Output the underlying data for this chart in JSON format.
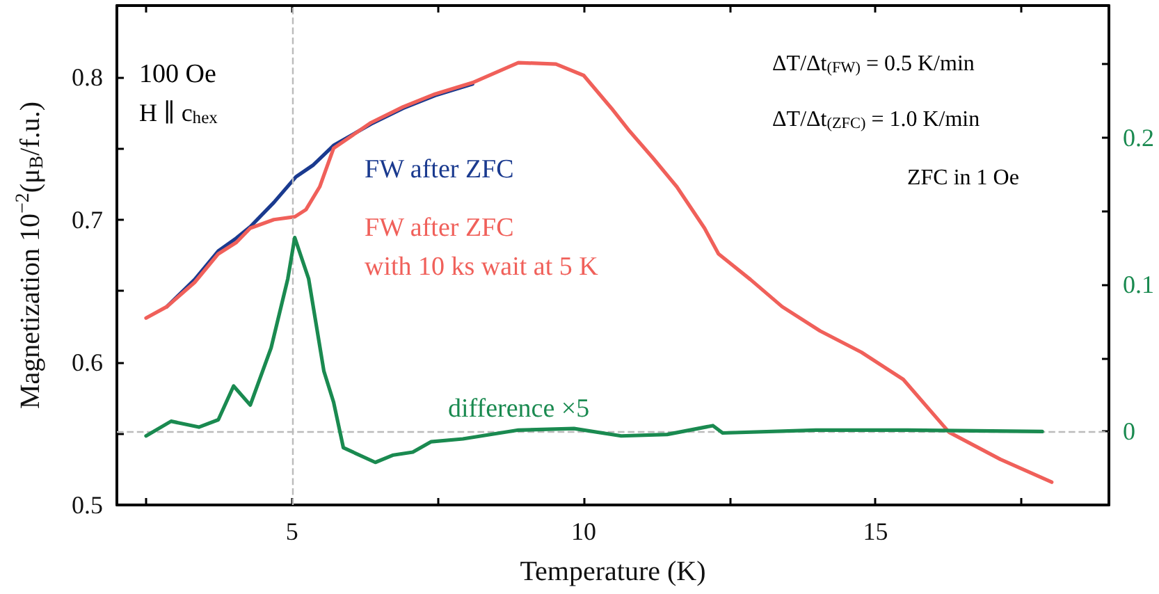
{
  "chart_data": {
    "type": "line",
    "xlabel": "Temperature (K)",
    "ylabel": "Magnetization 10$^{−2}$(μ$_{B}$/f.u.)",
    "xlim": [
      2,
      19
    ],
    "xticks": [
      {
        "value": 2.5,
        "label": null
      },
      5,
      {
        "value": 7.5,
        "label": null
      },
      10,
      {
        "value": 12.5,
        "label": null
      },
      15,
      {
        "value": 17.5,
        "label": null
      }
    ],
    "ylim": [
      0.5,
      0.85
    ],
    "yticks": [
      0.5,
      {
        "value": 0.55,
        "label": null
      },
      0.6,
      {
        "value": 0.65,
        "label": null
      },
      0.7,
      {
        "value": 0.75,
        "label": null
      },
      0.8
    ],
    "y2lim": [
      -0.05,
      0.29
    ],
    "y2ticks": [
      {
        "value": -0.05,
        "label": null
      },
      0,
      {
        "value": 0.05,
        "label": null
      },
      0.1,
      {
        "value": 0.15,
        "label": null
      },
      0.2,
      {
        "value": 0.25,
        "label": null
      }
    ],
    "grid": false,
    "legend": false,
    "marker": "none",
    "line_style": "solid",
    "series": [
      {
        "name": "FW after ZFC",
        "color": "#1a3a8f",
        "x": [
          2.857,
          3.333,
          3.738,
          4.048,
          4.286,
          4.69,
          5.07,
          5.357,
          5.714,
          6.357,
          6.905,
          7.452,
          8.095
        ],
        "values": [
          0.639,
          0.658,
          0.678,
          0.687,
          0.695,
          0.712,
          0.73,
          0.738,
          0.752,
          0.767,
          0.778,
          0.787,
          0.795
        ]
      },
      {
        "name": "FW after ZFC\nwith 10 ks wait at 5 K",
        "color": "#f0605a",
        "x": [
          2.5,
          2.857,
          3.333,
          3.738,
          4.048,
          4.286,
          4.69,
          5.05,
          5.24,
          5.476,
          5.714,
          6.357,
          6.905,
          7.452,
          8.095,
          8.88,
          9.524,
          10.0,
          10.476,
          10.786,
          11.19,
          11.595,
          12.07,
          12.31,
          12.857,
          13.4,
          14.05,
          14.76,
          15.476,
          16.26,
          17.14,
          18.02
        ],
        "values": [
          0.631,
          0.639,
          0.656,
          0.676,
          0.684,
          0.694,
          0.7,
          0.702,
          0.707,
          0.723,
          0.75,
          0.768,
          0.779,
          0.788,
          0.796,
          0.81,
          0.809,
          0.801,
          0.778,
          0.762,
          0.743,
          0.723,
          0.694,
          0.676,
          0.658,
          0.639,
          0.622,
          0.607,
          0.588,
          0.551,
          0.532,
          0.516
        ]
      },
      {
        "name": "difference ×5",
        "color": "#1a8a50",
        "axis": "y2",
        "x": [
          2.5,
          2.929,
          3.405,
          3.738,
          4.0,
          4.286,
          4.643,
          4.929,
          5.048,
          5.286,
          5.548,
          5.714,
          5.881,
          6.429,
          6.738,
          7.071,
          7.381,
          7.929,
          8.881,
          9.833,
          10.643,
          11.429,
          12.214,
          12.381,
          13.976,
          15.548,
          17.857
        ],
        "values": [
          -0.003,
          0.007,
          0.003,
          0.008,
          0.031,
          0.018,
          0.057,
          0.104,
          0.132,
          0.104,
          0.041,
          0.02,
          -0.011,
          -0.021,
          -0.016,
          -0.014,
          -0.007,
          -0.005,
          0.001,
          0.002,
          -0.003,
          -0.002,
          0.004,
          -0.001,
          0.001,
          0.001,
          0
        ]
      }
    ],
    "ref_lines": [
      {
        "axis": "x",
        "value": 5,
        "color": "#bbbbbb",
        "line_style": "dashed"
      },
      {
        "axis": "y2",
        "value": 0,
        "color": "#bbbbbb",
        "line_style": "dashed"
      }
    ],
    "annotations": [
      "100 Oe",
      "H ∥ c$_{hex}$",
      "ΔT/Δt$_{(FW)}$ = 0.5 K/min",
      "ΔT/Δt$_{(ZFC)}$ = 1.0 K/min",
      "ZFC in 1 Oe"
    ]
  }
}
